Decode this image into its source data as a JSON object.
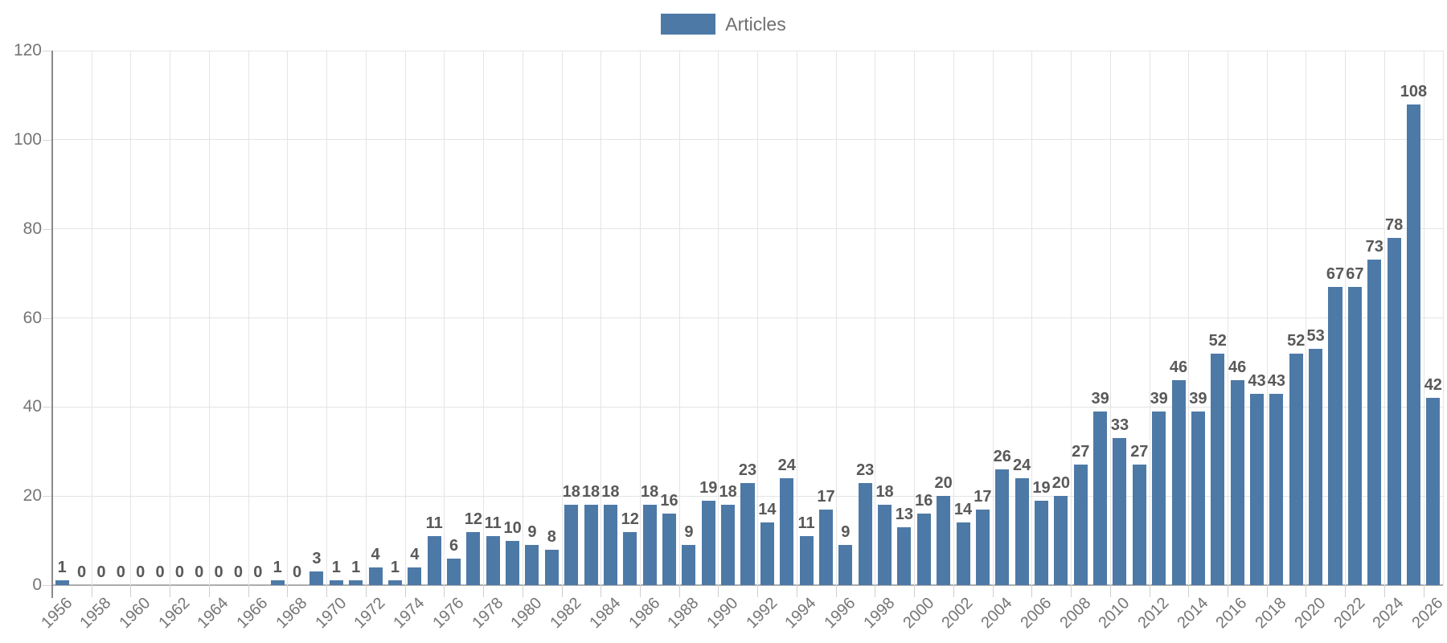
{
  "chart_data": {
    "type": "bar",
    "title": "",
    "xlabel": "",
    "ylabel": "",
    "legend": [
      "Articles"
    ],
    "legend_position": "top-center",
    "grid": true,
    "value_labels": true,
    "bar_color": "#4d79a7",
    "ylim": [
      0,
      120
    ],
    "y_ticks": [
      0,
      20,
      40,
      60,
      80,
      100,
      120
    ],
    "x_tick_labels": [
      "1956",
      "1958",
      "1960",
      "1962",
      "1964",
      "1966",
      "1968",
      "1970",
      "1972",
      "1974",
      "1976",
      "1978",
      "1980",
      "1982",
      "1984",
      "1986",
      "1988",
      "1990",
      "1992",
      "1994",
      "1996",
      "1998",
      "2000",
      "2002",
      "2004",
      "2006",
      "2008",
      "2010",
      "2012",
      "2014",
      "2016",
      "2018",
      "2020",
      "2022",
      "2024",
      "2026"
    ],
    "categories": [
      1956,
      1957,
      1958,
      1959,
      1960,
      1961,
      1962,
      1963,
      1964,
      1965,
      1966,
      1967,
      1968,
      1969,
      1970,
      1971,
      1972,
      1973,
      1974,
      1975,
      1976,
      1977,
      1978,
      1979,
      1980,
      1981,
      1982,
      1983,
      1984,
      1985,
      1986,
      1987,
      1988,
      1989,
      1990,
      1991,
      1992,
      1993,
      1994,
      1995,
      1996,
      1997,
      1998,
      1999,
      2000,
      2001,
      2002,
      2003,
      2004,
      2005,
      2006,
      2007,
      2008,
      2009,
      2010,
      2011,
      2012,
      2013,
      2014,
      2015,
      2016,
      2017,
      2018,
      2019,
      2020,
      2021,
      2022,
      2023,
      2024,
      2025,
      2026
    ],
    "values": [
      1,
      0,
      0,
      0,
      0,
      0,
      0,
      0,
      0,
      0,
      0,
      1,
      0,
      3,
      1,
      1,
      4,
      1,
      4,
      11,
      6,
      12,
      11,
      10,
      9,
      8,
      18,
      18,
      18,
      12,
      18,
      16,
      9,
      19,
      18,
      23,
      14,
      24,
      11,
      17,
      9,
      23,
      18,
      13,
      16,
      20,
      14,
      17,
      26,
      24,
      19,
      20,
      27,
      39,
      33,
      27,
      39,
      46,
      39,
      52,
      46,
      43,
      43,
      52,
      53,
      67,
      67,
      73,
      78,
      108,
      42
    ]
  }
}
